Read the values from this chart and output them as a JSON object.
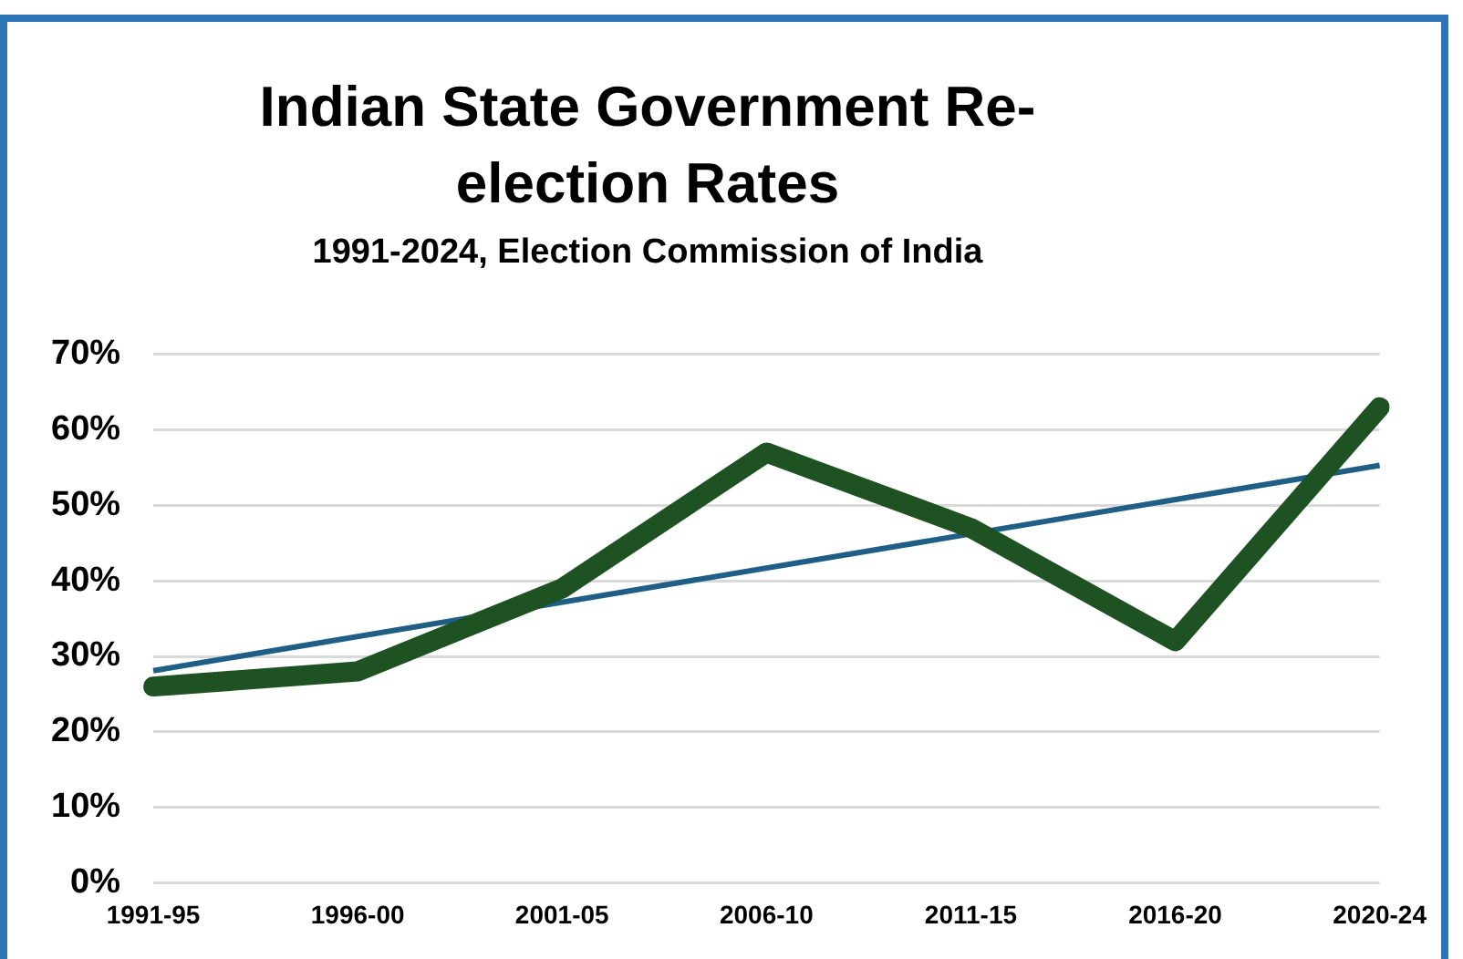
{
  "chart_data": {
    "type": "line",
    "title": "Indian State Government Re-election Rates",
    "subtitle": "1991-2024, Election Commission of India",
    "categories": [
      "1991-95",
      "1996-00",
      "2001-05",
      "2006-10",
      "2011-15",
      "2016-20",
      "2020-24"
    ],
    "series": [
      {
        "color": "#1e5223",
        "values": [
          26,
          28,
          39,
          57,
          47,
          32,
          63
        ]
      },
      {
        "type": "line",
        "color": "#1f5f85",
        "x": [
          "1991-95",
          "2020-24"
        ],
        "values": [
          28.1,
          55.3
        ]
      }
    ],
    "ylim": [
      0,
      70
    ],
    "yticks": [
      {
        "value": 0,
        "label": "0%"
      },
      {
        "value": 10,
        "label": "10%"
      },
      {
        "value": 20,
        "label": "20%"
      },
      {
        "value": 30,
        "label": "30%"
      },
      {
        "value": 40,
        "label": "40%"
      },
      {
        "value": 50,
        "label": "50%"
      },
      {
        "value": 60,
        "label": "60%"
      },
      {
        "value": 70,
        "label": "70%"
      }
    ],
    "grid": "y",
    "legend": false,
    "marker": "none",
    "line_style": "solid"
  }
}
